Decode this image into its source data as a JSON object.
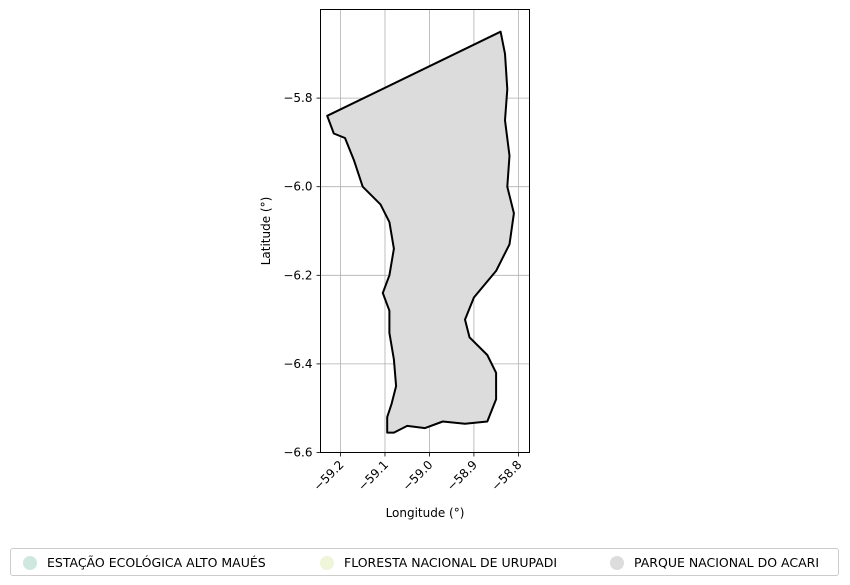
{
  "chart_data": {
    "type": "map",
    "xlabel": "Longitude (°)",
    "ylabel": "Latitude (°)",
    "xlim": [
      -59.245,
      -58.775
    ],
    "ylim": [
      -6.6,
      -5.6
    ],
    "xticks": [
      -59.2,
      -59.1,
      -59.0,
      -58.9,
      -58.8
    ],
    "xtick_labels": [
      "−59.2",
      "−59.1",
      "−59.0",
      "−58.9",
      "−58.8"
    ],
    "yticks": [
      -5.8,
      -6.0,
      -6.2,
      -6.4,
      -6.6
    ],
    "ytick_labels": [
      "−5.8",
      "−6.0",
      "−6.2",
      "−6.4",
      "−6.6"
    ],
    "grid": true,
    "region_fill": "#dcdcdc",
    "region_edge": "#000000",
    "boundary": [
      [
        -59.23,
        -5.84
      ],
      [
        -58.84,
        -5.65
      ],
      [
        -58.83,
        -5.7
      ],
      [
        -58.825,
        -5.78
      ],
      [
        -58.83,
        -5.85
      ],
      [
        -58.82,
        -5.93
      ],
      [
        -58.825,
        -6.0
      ],
      [
        -58.81,
        -6.06
      ],
      [
        -58.82,
        -6.13
      ],
      [
        -58.85,
        -6.19
      ],
      [
        -58.9,
        -6.25
      ],
      [
        -58.92,
        -6.3
      ],
      [
        -58.91,
        -6.34
      ],
      [
        -58.87,
        -6.38
      ],
      [
        -58.85,
        -6.42
      ],
      [
        -58.85,
        -6.48
      ],
      [
        -58.87,
        -6.53
      ],
      [
        -58.92,
        -6.535
      ],
      [
        -58.97,
        -6.53
      ],
      [
        -59.01,
        -6.545
      ],
      [
        -59.05,
        -6.54
      ],
      [
        -59.08,
        -6.555
      ],
      [
        -59.095,
        -6.555
      ],
      [
        -59.095,
        -6.52
      ],
      [
        -59.085,
        -6.49
      ],
      [
        -59.075,
        -6.45
      ],
      [
        -59.08,
        -6.39
      ],
      [
        -59.09,
        -6.33
      ],
      [
        -59.09,
        -6.28
      ],
      [
        -59.105,
        -6.24
      ],
      [
        -59.09,
        -6.2
      ],
      [
        -59.08,
        -6.14
      ],
      [
        -59.09,
        -6.08
      ],
      [
        -59.11,
        -6.04
      ],
      [
        -59.15,
        -6.0
      ],
      [
        -59.17,
        -5.94
      ],
      [
        -59.19,
        -5.89
      ],
      [
        -59.215,
        -5.88
      ],
      [
        -59.23,
        -5.84
      ]
    ],
    "legend": {
      "placement": "bottom",
      "entries": [
        {
          "label": "ESTAÇÃO ECOLÓGICA ALTO MAUÉS",
          "color": "#cfe8df"
        },
        {
          "label": "FLORESTA NACIONAL DE URUPADI",
          "color": "#eef5d8"
        },
        {
          "label": "PARQUE NACIONAL DO ACARI",
          "color": "#dcdcdc"
        }
      ]
    }
  }
}
